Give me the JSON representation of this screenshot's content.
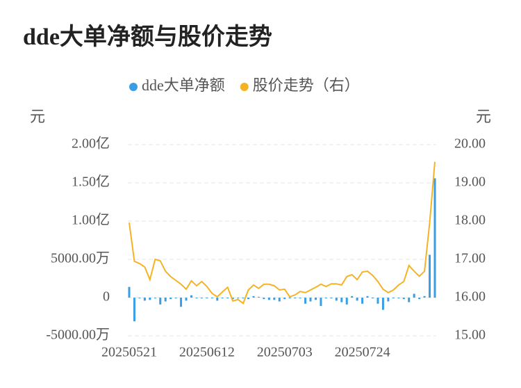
{
  "chart_data": {
    "type": "combo",
    "title": "dde大单净额与股价走势",
    "y_label": "元",
    "y2_label": "元",
    "categories": [
      "20250521",
      null,
      null,
      null,
      null,
      null,
      null,
      null,
      null,
      null,
      null,
      null,
      null,
      null,
      null,
      "20250612",
      null,
      null,
      null,
      null,
      null,
      null,
      null,
      null,
      null,
      null,
      null,
      null,
      null,
      null,
      "20250703",
      null,
      null,
      null,
      null,
      null,
      null,
      null,
      null,
      null,
      null,
      null,
      null,
      null,
      null,
      "20250724",
      null,
      null,
      null,
      null,
      null,
      null,
      null,
      null,
      null,
      null,
      null,
      null,
      null,
      null
    ],
    "series": [
      {
        "name": "dde大单净额",
        "type": "bar",
        "color": "#3a9ee4",
        "values": [
          0.14,
          -0.31,
          -0.01,
          -0.04,
          -0.03,
          -0.01,
          -0.09,
          -0.05,
          -0.02,
          -0.01,
          -0.12,
          -0.04,
          0.03,
          -0.01,
          -0.01,
          -0.01,
          -0.01,
          -0.04,
          -0.01,
          -0.01,
          -0.02,
          -0.01,
          -0.01,
          -0.02,
          0.02,
          0.01,
          -0.02,
          -0.03,
          -0.03,
          -0.05,
          -0.02,
          -0.01,
          -0.01,
          -0.01,
          -0.08,
          -0.05,
          -0.03,
          -0.11,
          -0.01,
          -0.01,
          -0.04,
          -0.06,
          -0.09,
          0.02,
          -0.04,
          -0.08,
          0.02,
          -0.01,
          -0.08,
          -0.16,
          -0.05,
          -0.01,
          -0.01,
          -0.02,
          -0.06,
          0.05,
          -0.02,
          0.02,
          0.56,
          1.56
        ]
      },
      {
        "name": "股价走势（右）",
        "type": "line",
        "axis": "y2",
        "color": "#f5b324",
        "values": [
          17.96,
          16.95,
          16.89,
          16.8,
          16.47,
          17.0,
          16.96,
          16.69,
          16.55,
          16.45,
          16.35,
          16.22,
          16.44,
          16.31,
          16.42,
          16.29,
          16.11,
          16.02,
          16.15,
          16.27,
          15.91,
          15.95,
          15.85,
          16.2,
          16.33,
          16.24,
          16.35,
          16.35,
          16.31,
          16.2,
          16.22,
          16.02,
          16.07,
          16.16,
          16.13,
          16.2,
          16.27,
          16.35,
          16.29,
          16.36,
          16.36,
          16.33,
          16.55,
          16.6,
          16.47,
          16.67,
          16.69,
          16.58,
          16.42,
          16.22,
          16.13,
          16.2,
          16.33,
          16.42,
          16.84,
          16.69,
          16.56,
          16.69,
          17.96,
          19.55
        ]
      }
    ],
    "ylim": [
      -0.5,
      2
    ],
    "yticks": [
      {
        "value": -0.5,
        "label": "-5000.00万"
      },
      0,
      {
        "value": 0.5,
        "label": "5000.00万"
      },
      {
        "value": 1,
        "label": "1.00亿"
      },
      {
        "value": 1.5,
        "label": "1.50亿"
      },
      {
        "value": 2,
        "label": "2.00亿"
      }
    ],
    "y2lim": [
      15,
      20
    ],
    "y2ticks": [
      {
        "value": 15,
        "label": "15.00"
      },
      {
        "value": 16,
        "label": "16.00"
      },
      {
        "value": 17,
        "label": "17.00"
      },
      {
        "value": 18,
        "label": "18.00"
      },
      {
        "value": 19,
        "label": "19.00"
      },
      {
        "value": 20,
        "label": "20.00"
      }
    ],
    "grid": true
  }
}
